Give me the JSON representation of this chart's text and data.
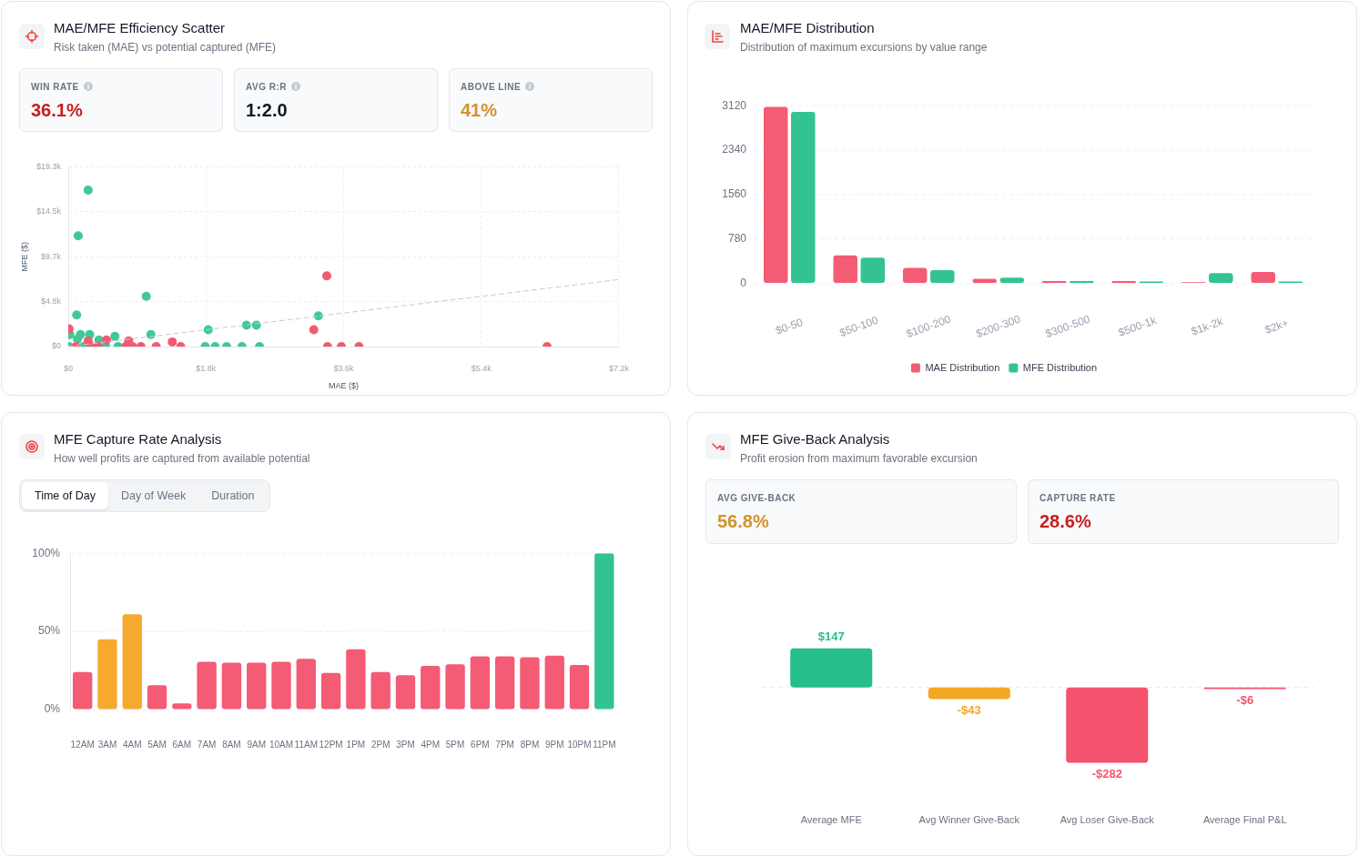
{
  "chart_data": [
    {
      "type": "scatter",
      "title": "MAE/MFE Efficiency Scatter",
      "subtitle": "Risk taken (MAE) vs potential captured (MFE)",
      "xlabel": "MAE ($)",
      "ylabel": "MFE ($)",
      "xlim": [
        0,
        7200
      ],
      "ylim": [
        0,
        19300
      ],
      "xticks": [
        {
          "value": 0,
          "label": "$0"
        },
        {
          "value": 1800,
          "label": "$1.8k"
        },
        {
          "value": 3600,
          "label": "$3.6k"
        },
        {
          "value": 5400,
          "label": "$5.4k"
        },
        {
          "value": 7200,
          "label": "$7.2k"
        }
      ],
      "yticks": [
        {
          "value": 0,
          "label": "$0"
        },
        {
          "value": 4825,
          "label": "$4.8k"
        },
        {
          "value": 9650,
          "label": "$9.7k"
        },
        {
          "value": 14475,
          "label": "$14.5k"
        },
        {
          "value": 19300,
          "label": "$19.3k"
        }
      ],
      "grid": true,
      "marker": "circle",
      "series": [
        {
          "type": "line",
          "color": "#c8c8d2",
          "line_style": "dashed",
          "marker": "none",
          "x": [
            0,
            7200
          ],
          "values": [
            0,
            7200
          ]
        },
        {
          "color": "#f25a72",
          "x": [
            3380,
            3210,
            10,
            3390,
            3570,
            3800,
            6260,
            100,
            300,
            390,
            750,
            840,
            950,
            1150,
            1470,
            1360,
            790,
            500,
            260
          ],
          "values": [
            7600,
            1800,
            1900,
            0,
            0,
            0,
            0,
            0,
            0,
            0,
            0,
            0,
            0,
            0,
            0,
            500,
            600,
            700,
            600
          ]
        },
        {
          "color": "#40c896",
          "x": [
            260,
            130,
            1020,
            110,
            3270,
            1830,
            2330,
            2460,
            1080,
            160,
            280,
            20,
            610,
            400,
            120,
            650,
            490,
            10,
            200,
            1790,
            1920,
            2070,
            2270,
            2500
          ],
          "values": [
            16800,
            11900,
            5400,
            3400,
            3300,
            1800,
            2300,
            2300,
            1300,
            1300,
            1300,
            1300,
            1100,
            700,
            800,
            0,
            0,
            0,
            0,
            0,
            0,
            0,
            0,
            0
          ]
        }
      ]
    },
    {
      "type": "other",
      "annotations": [
        "WIN RATE",
        "36.1%",
        "AVG R:R",
        "1:2.0",
        "ABOVE LINE",
        "41%"
      ],
      "colors": [
        "#c81e1e",
        "#111827",
        "#d4922a"
      ]
    },
    {
      "type": "bar",
      "title": "MAE/MFE Distribution",
      "subtitle": "Distribution of maximum excursions by value range",
      "categories": [
        "$0-50",
        "$50-100",
        "$100-200",
        "$200-300",
        "$300-500",
        "$500-1k",
        "$1k-2k",
        "$2k+"
      ],
      "series": [
        {
          "name": "MAE Distribution",
          "color": "#f45b74",
          "values": [
            3100,
            490,
            270,
            80,
            40,
            40,
            20,
            200
          ]
        },
        {
          "name": "MFE Distribution",
          "color": "#33c391",
          "values": [
            3010,
            450,
            230,
            100,
            40,
            30,
            180,
            30
          ]
        }
      ],
      "ylim": [
        0,
        3120
      ],
      "yticks": [
        0,
        780,
        1560,
        2340,
        3120
      ],
      "grid": "y",
      "legend": "bottom"
    },
    {
      "type": "bar",
      "title": "MFE Capture Rate Analysis",
      "subtitle": "How well profits are captured from available potential",
      "annotations": [
        "Time of Day",
        "Day of Week",
        "Duration"
      ],
      "categories": [
        "12AM",
        "3AM",
        "4AM",
        "5AM",
        "6AM",
        "7AM",
        "8AM",
        "9AM",
        "10AM",
        "11AM",
        "12PM",
        "1PM",
        "2PM",
        "3PM",
        "4PM",
        "5PM",
        "6PM",
        "7PM",
        "8PM",
        "9PM",
        "10PM",
        "11PM"
      ],
      "values": [
        24,
        45,
        61,
        15.5,
        4,
        30.5,
        30,
        30,
        30.5,
        32.5,
        23.5,
        38.5,
        24,
        22,
        28,
        29,
        34,
        34,
        33.5,
        34.5,
        28.5,
        100
      ],
      "colors": [
        "#f45b74",
        "#f5aa2f",
        "#f5aa2f",
        "#f45b74",
        "#f45b74",
        "#f45b74",
        "#f45b74",
        "#f45b74",
        "#f45b74",
        "#f45b74",
        "#f45b74",
        "#f45b74",
        "#f45b74",
        "#f45b74",
        "#f45b74",
        "#f45b74",
        "#f45b74",
        "#f45b74",
        "#f45b74",
        "#f45b74",
        "#f45b74",
        "#33c391"
      ],
      "ylim": [
        0,
        100
      ],
      "yticks": [
        {
          "value": 0,
          "label": "0%"
        },
        {
          "value": 50,
          "label": "50%"
        },
        {
          "value": 100,
          "label": "100%"
        }
      ],
      "grid": "y"
    },
    {
      "type": "bar",
      "title": "MFE Give-Back Analysis",
      "subtitle": "Profit erosion from maximum favorable excursion",
      "categories": [
        "Average MFE",
        "Avg Winner Give-Back",
        "Avg Loser Give-Back",
        "Average Final P&L"
      ],
      "values": [
        147,
        -43,
        -282,
        -6
      ],
      "colors": [
        "#26bf8a",
        "#f5a623",
        "#f4536f",
        "#f4536f"
      ],
      "value_labels": [
        "$147",
        "-$43",
        "-$282",
        "-$6"
      ],
      "ref_lines": [
        {
          "axis": "y",
          "value": 0,
          "color": "#e5e7eb",
          "line_style": "dashed"
        }
      ],
      "tick_labels": "x"
    },
    {
      "type": "other",
      "annotations": [
        "AVG GIVE-BACK",
        "56.8%",
        "CAPTURE RATE",
        "28.6%"
      ],
      "colors": [
        "#d4922a",
        "#c81e1e"
      ]
    }
  ]
}
